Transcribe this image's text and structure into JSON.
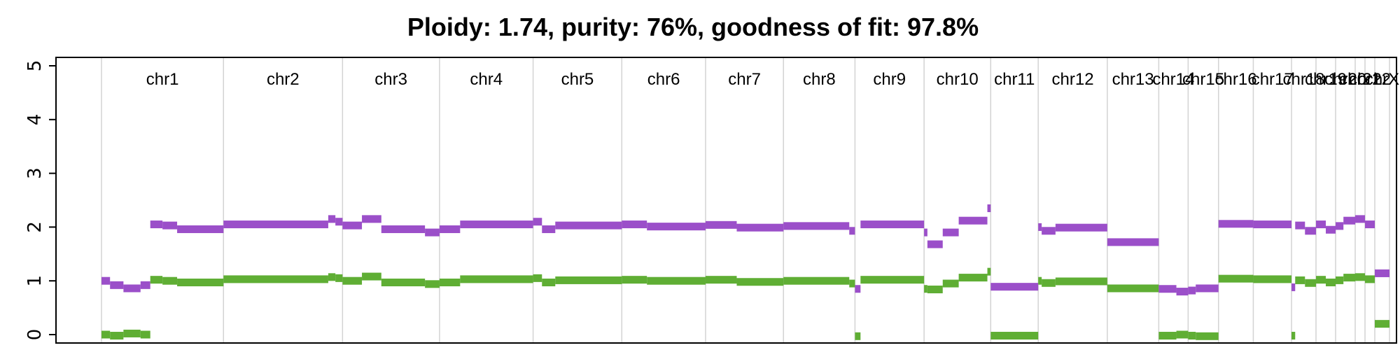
{
  "chart_data": {
    "type": "scatter",
    "title": "Ploidy: 1.74, purity: 76%, goodness of fit: 97.8%",
    "ylim": [
      0,
      5
    ],
    "yticks": [
      "0",
      "1",
      "2",
      "3",
      "4",
      "5"
    ],
    "grid": true,
    "colors": {
      "major": "#9b4fc9",
      "minor": "#5fae34"
    },
    "chromosomes": [
      {
        "name": "chr1",
        "len": 249
      },
      {
        "name": "chr2",
        "len": 243
      },
      {
        "name": "chr3",
        "len": 198
      },
      {
        "name": "chr4",
        "len": 191
      },
      {
        "name": "chr5",
        "len": 181
      },
      {
        "name": "chr6",
        "len": 171
      },
      {
        "name": "chr7",
        "len": 159
      },
      {
        "name": "chr8",
        "len": 146
      },
      {
        "name": "chr9",
        "len": 141
      },
      {
        "name": "chr10",
        "len": 136
      },
      {
        "name": "chr11",
        "len": 97
      },
      {
        "name": "chr12",
        "len": 141
      },
      {
        "name": "chr13",
        "len": 105
      },
      {
        "name": "chr14",
        "len": 60
      },
      {
        "name": "chr15",
        "len": 62
      },
      {
        "name": "chr16",
        "len": 71
      },
      {
        "name": "chr17",
        "len": 78
      },
      {
        "name": "chr18",
        "len": 50
      },
      {
        "name": "chr19",
        "len": 40
      },
      {
        "name": "chr20",
        "len": 40
      },
      {
        "name": "chr21",
        "len": 20
      },
      {
        "name": "chr22",
        "len": 20
      },
      {
        "name": "chrX",
        "len": 30
      }
    ],
    "segments": [
      {
        "chr": "chr1",
        "start": 0.0,
        "end": 0.07,
        "major": 1.0,
        "minor": 0.0
      },
      {
        "chr": "chr1",
        "start": 0.07,
        "end": 0.18,
        "major": 0.92,
        "minor": -0.02
      },
      {
        "chr": "chr1",
        "start": 0.18,
        "end": 0.32,
        "major": 0.86,
        "minor": 0.02
      },
      {
        "chr": "chr1",
        "start": 0.32,
        "end": 0.4,
        "major": 0.92,
        "minor": 0.0
      },
      {
        "chr": "chr1",
        "start": 0.4,
        "end": 0.5,
        "major": 2.05,
        "minor": 1.02
      },
      {
        "chr": "chr1",
        "start": 0.5,
        "end": 0.62,
        "major": 2.03,
        "minor": 1.0
      },
      {
        "chr": "chr1",
        "start": 0.62,
        "end": 1.0,
        "major": 1.96,
        "minor": 0.97
      },
      {
        "chr": "chr2",
        "start": 0.0,
        "end": 0.88,
        "major": 2.05,
        "minor": 1.03
      },
      {
        "chr": "chr2",
        "start": 0.88,
        "end": 0.94,
        "major": 2.15,
        "minor": 1.07
      },
      {
        "chr": "chr2",
        "start": 0.94,
        "end": 1.0,
        "major": 2.1,
        "minor": 1.05
      },
      {
        "chr": "chr3",
        "start": 0.0,
        "end": 0.2,
        "major": 2.03,
        "minor": 1.0
      },
      {
        "chr": "chr3",
        "start": 0.2,
        "end": 0.4,
        "major": 2.15,
        "minor": 1.08
      },
      {
        "chr": "chr3",
        "start": 0.4,
        "end": 0.85,
        "major": 1.96,
        "minor": 0.97
      },
      {
        "chr": "chr3",
        "start": 0.85,
        "end": 1.0,
        "major": 1.9,
        "minor": 0.94
      },
      {
        "chr": "chr4",
        "start": 0.0,
        "end": 0.22,
        "major": 1.96,
        "minor": 0.97
      },
      {
        "chr": "chr4",
        "start": 0.22,
        "end": 1.0,
        "major": 2.05,
        "minor": 1.03
      },
      {
        "chr": "chr5",
        "start": 0.0,
        "end": 0.1,
        "major": 2.1,
        "minor": 1.05
      },
      {
        "chr": "chr5",
        "start": 0.1,
        "end": 0.25,
        "major": 1.96,
        "minor": 0.97
      },
      {
        "chr": "chr5",
        "start": 0.25,
        "end": 1.0,
        "major": 2.03,
        "minor": 1.01
      },
      {
        "chr": "chr6",
        "start": 0.0,
        "end": 0.3,
        "major": 2.05,
        "minor": 1.02
      },
      {
        "chr": "chr6",
        "start": 0.3,
        "end": 1.0,
        "major": 2.01,
        "minor": 1.0
      },
      {
        "chr": "chr7",
        "start": 0.0,
        "end": 0.4,
        "major": 2.04,
        "minor": 1.02
      },
      {
        "chr": "chr7",
        "start": 0.4,
        "end": 1.0,
        "major": 1.99,
        "minor": 0.98
      },
      {
        "chr": "chr8",
        "start": 0.0,
        "end": 0.92,
        "major": 2.02,
        "minor": 1.0
      },
      {
        "chr": "chr8",
        "start": 0.92,
        "end": 1.0,
        "major": 1.93,
        "minor": 0.95
      },
      {
        "chr": "chr9",
        "start": 0.0,
        "end": 0.08,
        "major": 0.85,
        "minor": -0.03
      },
      {
        "chr": "chr9",
        "start": 0.08,
        "end": 1.0,
        "major": 2.05,
        "minor": 1.02
      },
      {
        "chr": "chr10",
        "start": 0.0,
        "end": 0.05,
        "major": 1.9,
        "minor": 0.85
      },
      {
        "chr": "chr10",
        "start": 0.05,
        "end": 0.28,
        "major": 1.68,
        "minor": 0.84
      },
      {
        "chr": "chr10",
        "start": 0.28,
        "end": 0.52,
        "major": 1.9,
        "minor": 0.95
      },
      {
        "chr": "chr10",
        "start": 0.52,
        "end": 0.95,
        "major": 2.12,
        "minor": 1.06
      },
      {
        "chr": "chr10",
        "start": 0.95,
        "end": 1.0,
        "major": 2.35,
        "minor": 1.17
      },
      {
        "chr": "chr11",
        "start": 0.0,
        "end": 1.0,
        "major": 0.89,
        "minor": -0.02
      },
      {
        "chr": "chr12",
        "start": 0.0,
        "end": 0.05,
        "major": 2.0,
        "minor": 1.0
      },
      {
        "chr": "chr12",
        "start": 0.05,
        "end": 0.25,
        "major": 1.93,
        "minor": 0.96
      },
      {
        "chr": "chr12",
        "start": 0.25,
        "end": 1.0,
        "major": 1.99,
        "minor": 0.99
      },
      {
        "chr": "chr13",
        "start": 0.0,
        "end": 1.0,
        "major": 1.72,
        "minor": 0.86
      },
      {
        "chr": "chr14",
        "start": 0.0,
        "end": 0.6,
        "major": 0.85,
        "minor": -0.02
      },
      {
        "chr": "chr14",
        "start": 0.6,
        "end": 1.0,
        "major": 0.8,
        "minor": 0.0
      },
      {
        "chr": "chr15",
        "start": 0.0,
        "end": 0.25,
        "major": 0.82,
        "minor": -0.02
      },
      {
        "chr": "chr15",
        "start": 0.25,
        "end": 1.0,
        "major": 0.86,
        "minor": -0.03
      },
      {
        "chr": "chr16",
        "start": 0.0,
        "end": 1.0,
        "major": 2.06,
        "minor": 1.04
      },
      {
        "chr": "chr17",
        "start": 0.0,
        "end": 1.0,
        "major": 2.05,
        "minor": 1.03
      },
      {
        "chr": "chr18",
        "start": 0.0,
        "end": 0.15,
        "major": 0.88,
        "minor": -0.02
      },
      {
        "chr": "chr18",
        "start": 0.15,
        "end": 0.55,
        "major": 2.03,
        "minor": 1.01
      },
      {
        "chr": "chr18",
        "start": 0.55,
        "end": 1.0,
        "major": 1.93,
        "minor": 0.96
      },
      {
        "chr": "chr19",
        "start": 0.0,
        "end": 0.5,
        "major": 2.05,
        "minor": 1.02
      },
      {
        "chr": "chr19",
        "start": 0.5,
        "end": 1.0,
        "major": 1.95,
        "minor": 0.97
      },
      {
        "chr": "chr20",
        "start": 0.0,
        "end": 0.4,
        "major": 2.02,
        "minor": 1.01
      },
      {
        "chr": "chr20",
        "start": 0.4,
        "end": 1.0,
        "major": 2.12,
        "minor": 1.06
      },
      {
        "chr": "chr21",
        "start": 0.0,
        "end": 1.0,
        "major": 2.15,
        "minor": 1.07
      },
      {
        "chr": "chr22",
        "start": 0.0,
        "end": 1.0,
        "major": 2.05,
        "minor": 1.03
      },
      {
        "chr": "chrX",
        "start": 0.0,
        "end": 1.0,
        "major": 1.14,
        "minor": 0.2
      }
    ]
  }
}
